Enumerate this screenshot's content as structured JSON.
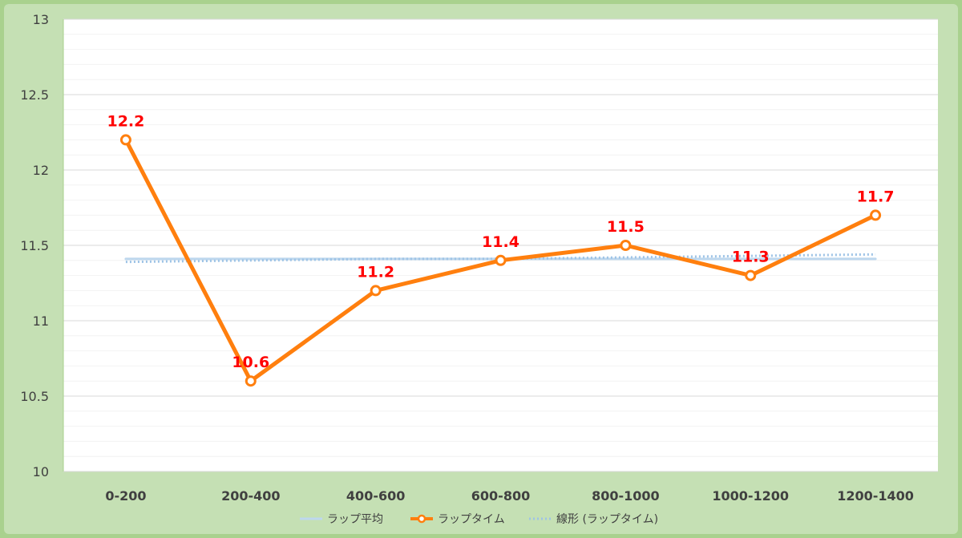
{
  "chart_data": {
    "type": "line",
    "title": "",
    "xlabel": "",
    "ylabel": "",
    "categories": [
      "0-200",
      "200-400",
      "400-600",
      "600-800",
      "800-1000",
      "1000-1200",
      "1200-1400"
    ],
    "ylim": [
      10,
      13
    ],
    "yticks": [
      "10",
      "10.5",
      "11",
      "11.5",
      "12",
      "12.5",
      "13"
    ],
    "grid": true,
    "legend_position": "bottom",
    "series": [
      {
        "name": "ラップ平均",
        "style": "solid",
        "color": "#bdd7ee",
        "values": [
          11.41,
          11.41,
          11.41,
          11.41,
          11.41,
          11.41,
          11.41
        ]
      },
      {
        "name": "ラップタイム",
        "style": "solid-markers",
        "color": "#ff7f0e",
        "data_label_color": "#ff0000",
        "values": [
          12.2,
          10.6,
          11.2,
          11.4,
          11.5,
          11.3,
          11.7
        ],
        "data_labels": [
          "12.2",
          "10.6",
          "11.2",
          "11.4",
          "11.5",
          "11.3",
          "11.7"
        ]
      },
      {
        "name": "線形 (ラップタイム)",
        "style": "dotted",
        "color": "#9dc3e6",
        "values": [
          11.39,
          11.4,
          11.41,
          11.41,
          11.42,
          11.43,
          11.44
        ]
      }
    ]
  }
}
